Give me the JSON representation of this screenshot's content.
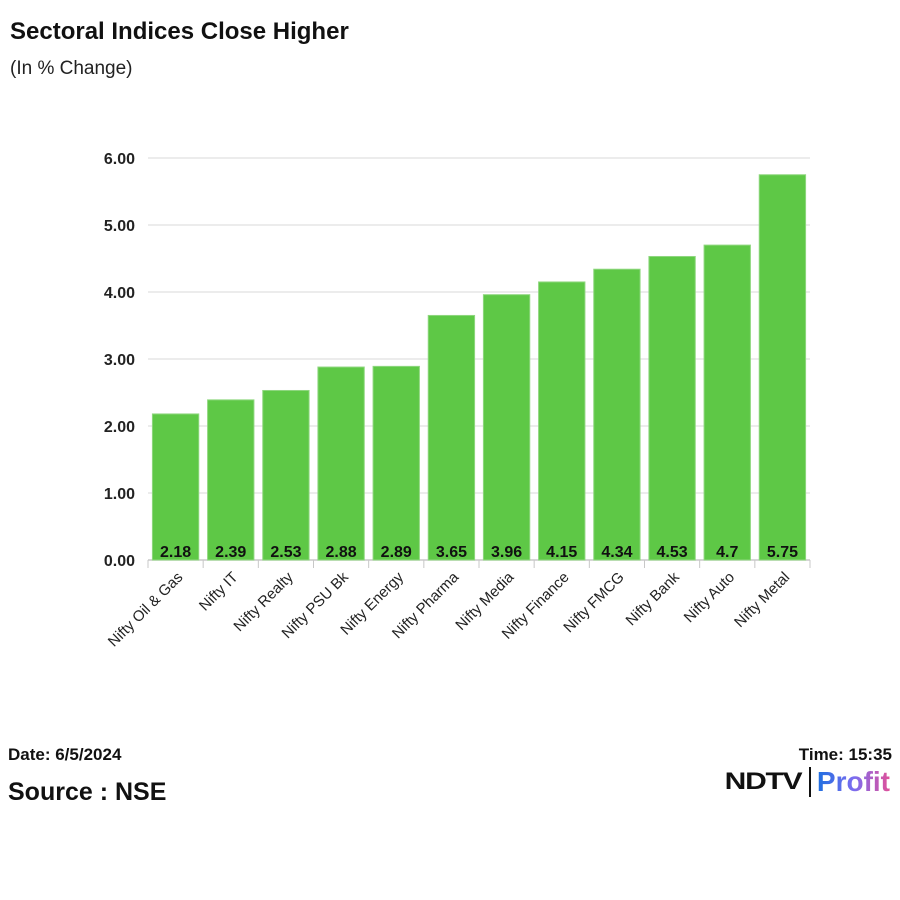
{
  "header": {
    "title": "Sectoral Indices Close Higher",
    "subtitle": "(In % Change)"
  },
  "footer": {
    "date": "Date: 6/5/2024",
    "time": "Time: 15:35",
    "source": "Source : NSE",
    "logo_text": "NDTV Profit",
    "logo_ndtv": "NDTV",
    "logo_profit": "Profit"
  },
  "chart_data": {
    "type": "bar",
    "title": "Sectoral Indices Close Higher",
    "subtitle": "(In % Change)",
    "categories": [
      "Nifty Oil & Gas",
      "Nifty IT",
      "Nifty Realty",
      "Nifty PSU Bk",
      "Nifty Energy",
      "Nifty Pharma",
      "Nifty Media",
      "Nifty Finance",
      "Nifty FMCG",
      "Nifty Bank",
      "Nifty Auto",
      "Nifty Metal"
    ],
    "values": [
      2.18,
      2.39,
      2.53,
      2.88,
      2.89,
      3.65,
      3.96,
      4.15,
      4.34,
      4.53,
      4.7,
      5.75
    ],
    "data_labels": [
      "2.18",
      "2.39",
      "2.53",
      "2.88",
      "2.89",
      "3.65",
      "3.96",
      "4.15",
      "4.34",
      "4.53",
      "4.7",
      "5.75"
    ],
    "yticks": [
      "0.00",
      "1.00",
      "2.00",
      "3.00",
      "4.00",
      "5.00",
      "6.00"
    ],
    "ylim": [
      0,
      6
    ],
    "grid": true,
    "bar_color": "#5ec846"
  }
}
